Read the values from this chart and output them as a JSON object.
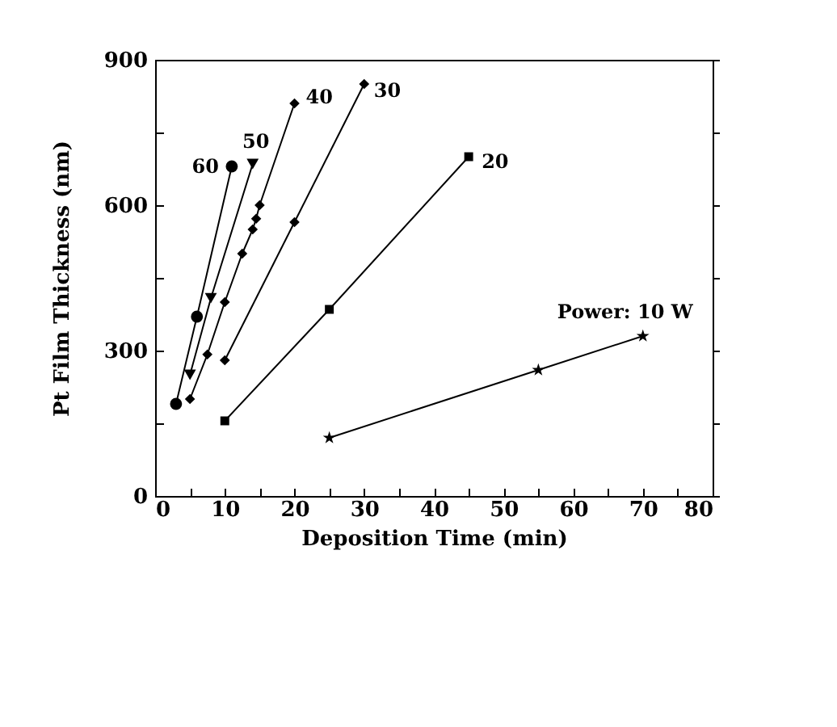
{
  "chart_data": {
    "type": "line",
    "xlabel": "Deposition Time (min)",
    "ylabel": "Pt Film Thickness (nm)",
    "xlim": [
      0,
      80
    ],
    "ylim": [
      0,
      900
    ],
    "xticks": [
      0,
      {
        "value": 5,
        "label": null
      },
      10,
      {
        "value": 15,
        "label": null
      },
      20,
      {
        "value": 25,
        "label": null
      },
      30,
      {
        "value": 35,
        "label": null
      },
      40,
      {
        "value": 45,
        "label": null
      },
      50,
      {
        "value": 55,
        "label": null
      },
      60,
      {
        "value": 65,
        "label": null
      },
      70,
      {
        "value": 75,
        "label": null
      },
      80
    ],
    "yticks": [
      0,
      {
        "value": 150,
        "label": null
      },
      300,
      {
        "value": 450,
        "label": null
      },
      600,
      {
        "value": 750,
        "label": null
      },
      900
    ],
    "grid": false,
    "legend": false,
    "line_style": "solid",
    "series": [
      {
        "name": "Power: 10 W",
        "color": "#000000",
        "marker": "star",
        "x": [
          25,
          55,
          70
        ],
        "values": [
          120,
          260,
          330
        ]
      },
      {
        "name": "20",
        "color": "#000000",
        "marker": "square",
        "x": [
          10,
          25,
          45
        ],
        "values": [
          155,
          385,
          700
        ]
      },
      {
        "name": "30",
        "color": "#000000",
        "marker": "diamond",
        "x": [
          10,
          20,
          30
        ],
        "values": [
          280,
          565,
          850
        ]
      },
      {
        "name": "40",
        "color": "#000000",
        "marker": "diamond",
        "x": [
          5,
          7.5,
          10,
          12.5,
          14,
          14.5,
          15,
          20
        ],
        "values": [
          200,
          292,
          400,
          500,
          550,
          572,
          600,
          810
        ]
      },
      {
        "name": "50",
        "color": "#000000",
        "marker": "triangle",
        "x": [
          5,
          8,
          14
        ],
        "values": [
          250,
          408,
          685
        ]
      },
      {
        "name": "60",
        "color": "#000000",
        "marker": "circle",
        "x": [
          3,
          6,
          11
        ],
        "values": [
          190,
          370,
          680
        ]
      }
    ]
  }
}
